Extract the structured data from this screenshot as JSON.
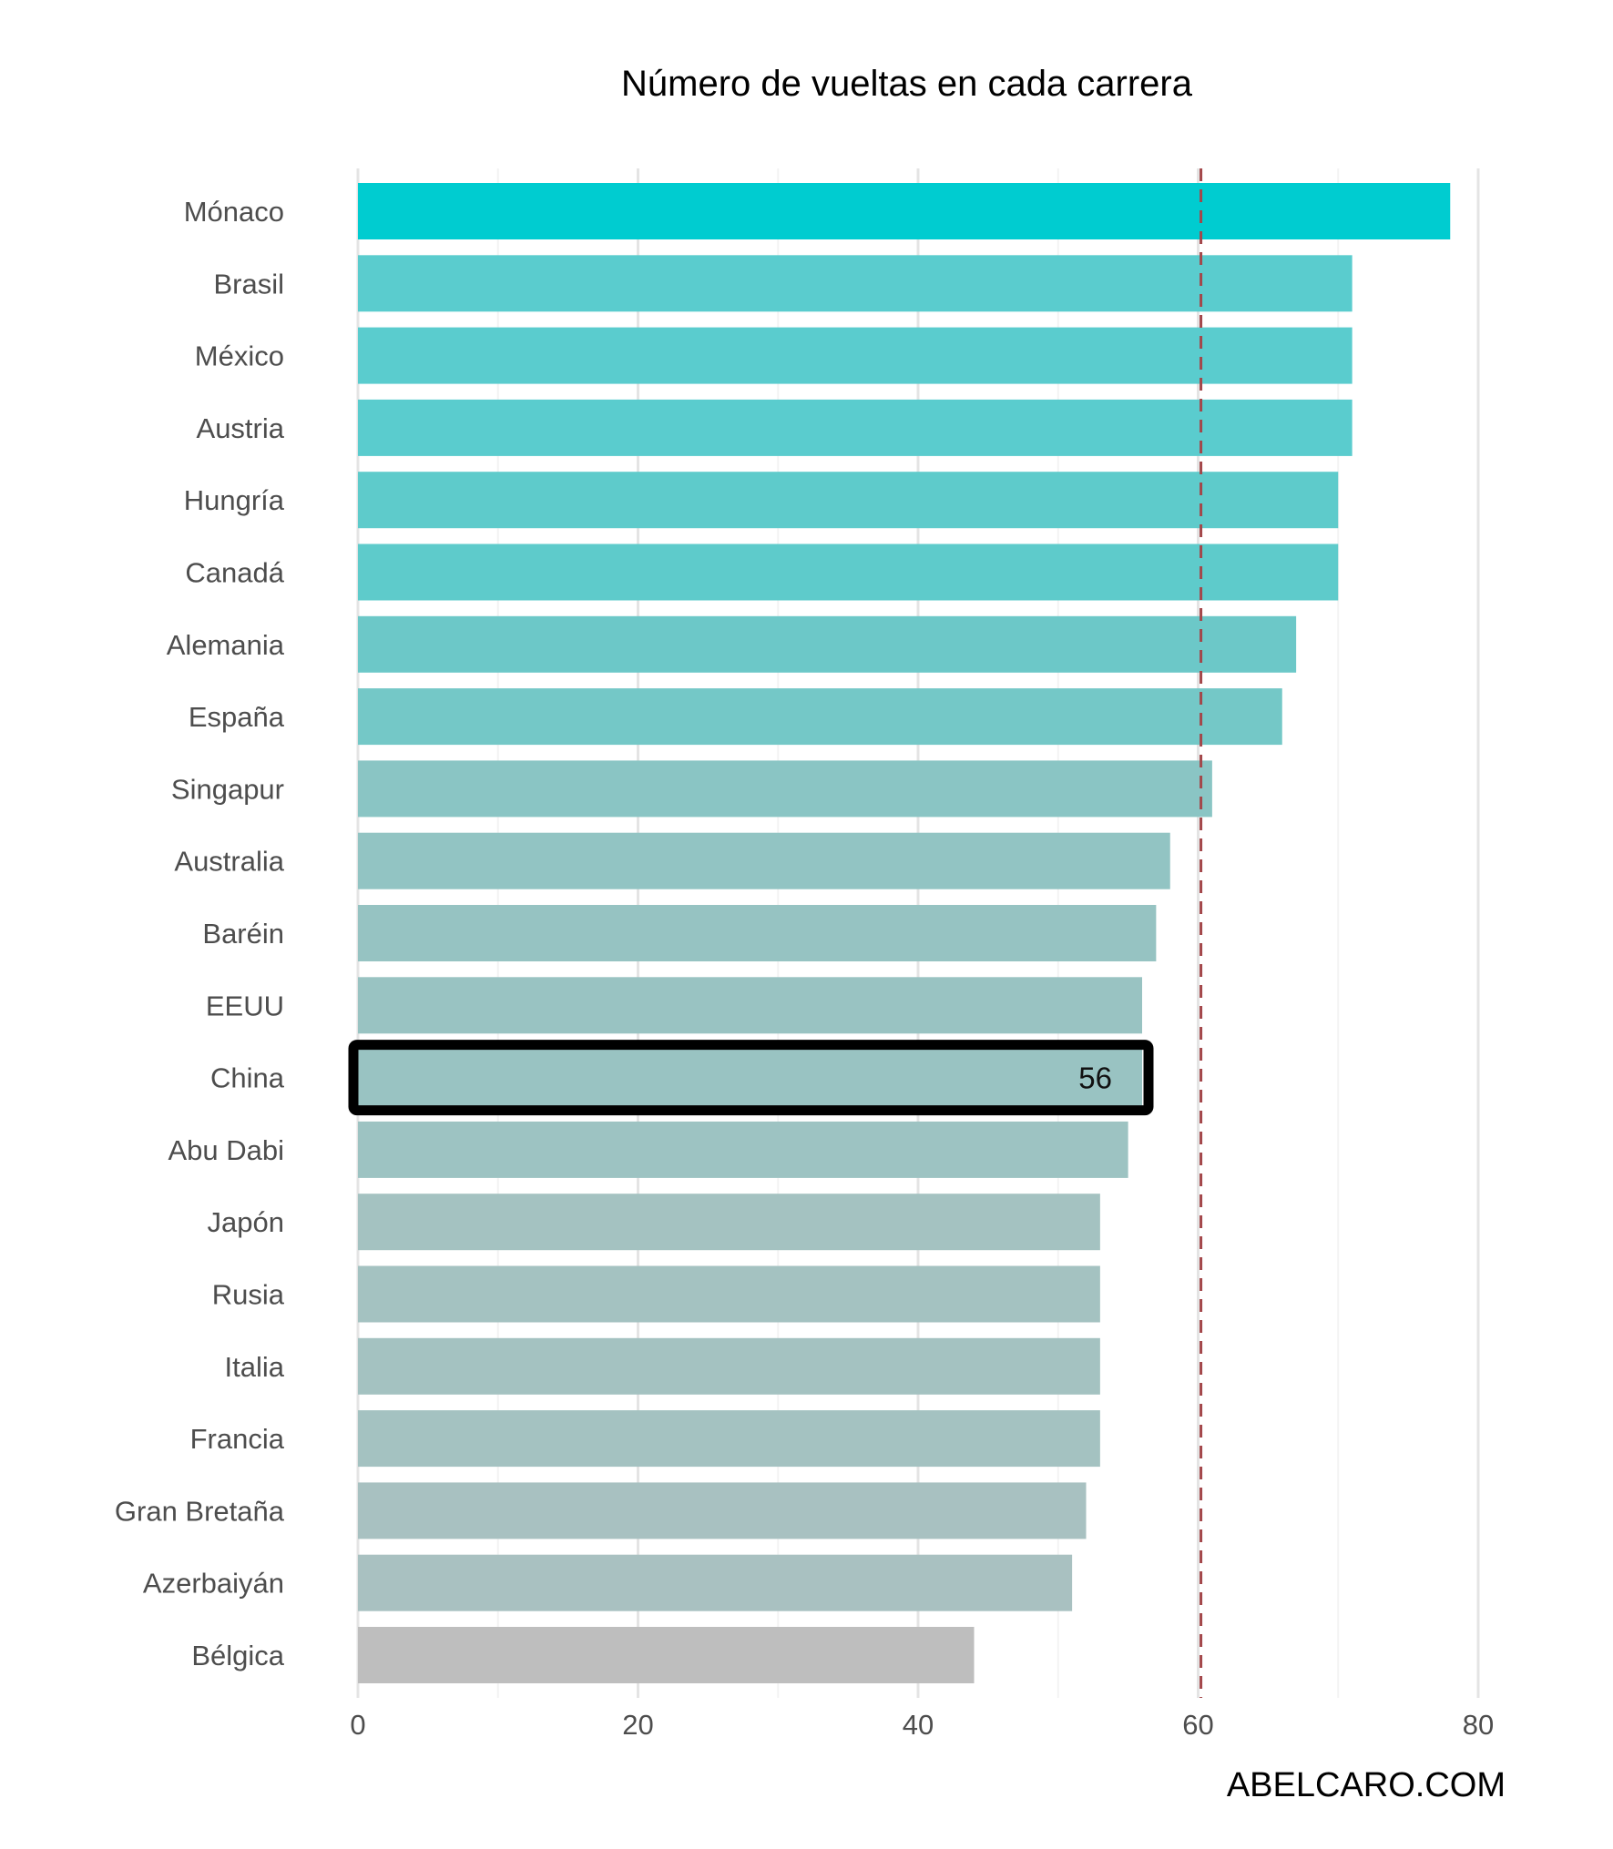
{
  "chart_data": {
    "type": "bar",
    "orientation": "horizontal",
    "title": "Número de vueltas en cada carrera",
    "categories": [
      "Mónaco",
      "Brasil",
      "México",
      "Austria",
      "Hungría",
      "Canadá",
      "Alemania",
      "España",
      "Singapur",
      "Australia",
      "Baréin",
      "EEUU",
      "China",
      "Abu Dabi",
      "Japón",
      "Rusia",
      "Italia",
      "Francia",
      "Gran Bretaña",
      "Azerbaiyán",
      "Bélgica"
    ],
    "values": [
      78,
      71,
      71,
      71,
      70,
      70,
      67,
      66,
      61,
      58,
      57,
      56,
      56,
      55,
      53,
      53,
      53,
      53,
      52,
      51,
      44
    ],
    "colors": [
      "#00ccd0",
      "#5accce",
      "#5accce",
      "#5accce",
      "#5ecbcb",
      "#5ecbcb",
      "#6cc8c8",
      "#74c8c7",
      "#8ac5c4",
      "#92c4c3",
      "#96c3c2",
      "#99c3c2",
      "#99c3c2",
      "#9dc3c2",
      "#a4c2c1",
      "#a4c2c1",
      "#a4c2c1",
      "#a4c2c1",
      "#a8c1c1",
      "#a9c1c1",
      "#bebebe"
    ],
    "xticks": [
      0,
      20,
      40,
      60,
      80
    ],
    "xlim": [
      0,
      82
    ],
    "reference_line": {
      "value": 60.2,
      "color": "#a3474a",
      "style": "dashed"
    },
    "highlight": {
      "category": "China",
      "label": "56"
    },
    "xlabel": "",
    "ylabel": "",
    "grid": true
  },
  "credit": "ABELCARO.COM"
}
